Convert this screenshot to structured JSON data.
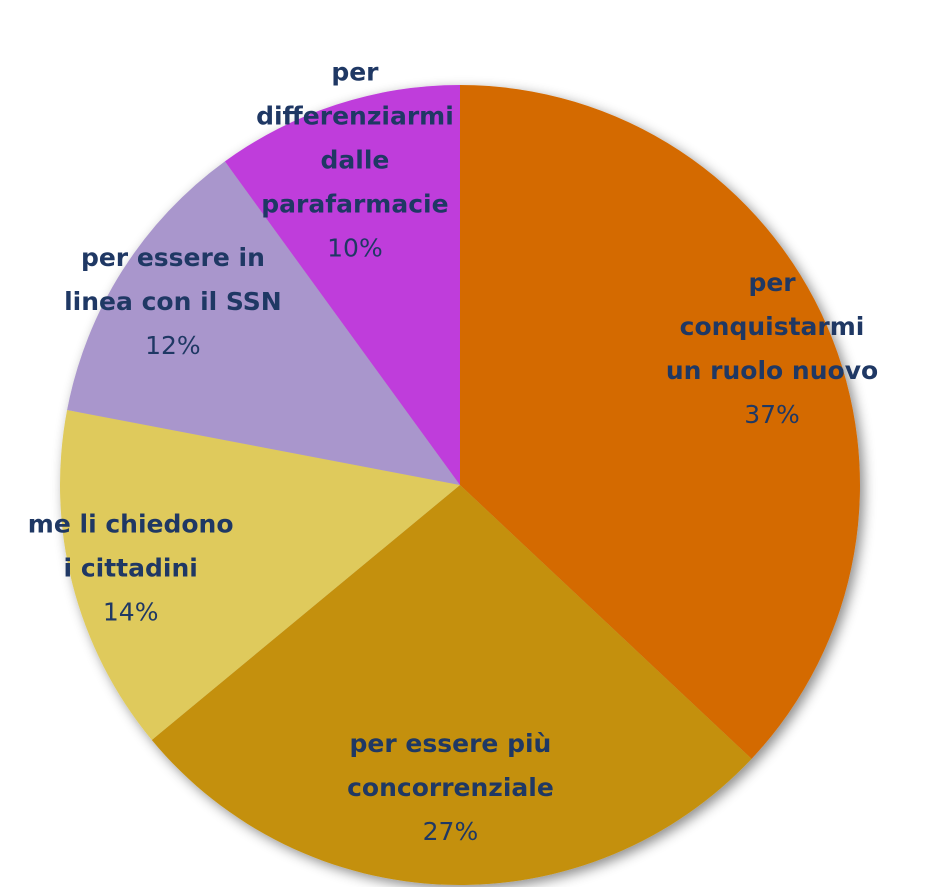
{
  "chart_data": {
    "type": "pie",
    "categories": [
      [
        "per",
        "conquistarmi",
        "un ruolo nuovo"
      ],
      [
        "per essere più",
        "concorrenziale"
      ],
      [
        "me li chiedono",
        "i cittadini"
      ],
      [
        "per essere in",
        "linea con il SSN"
      ],
      [
        "per",
        "differenziarmi",
        "dalle",
        "parafarmacie"
      ]
    ],
    "values": [
      37,
      27,
      14,
      12,
      10
    ],
    "value_labels": [
      "37%",
      "27%",
      "14%",
      "12%",
      "10%"
    ],
    "colors": [
      "#d46a00",
      "#c49010",
      "#dfca5b",
      "#a996cc",
      "#bf3ddb"
    ]
  }
}
